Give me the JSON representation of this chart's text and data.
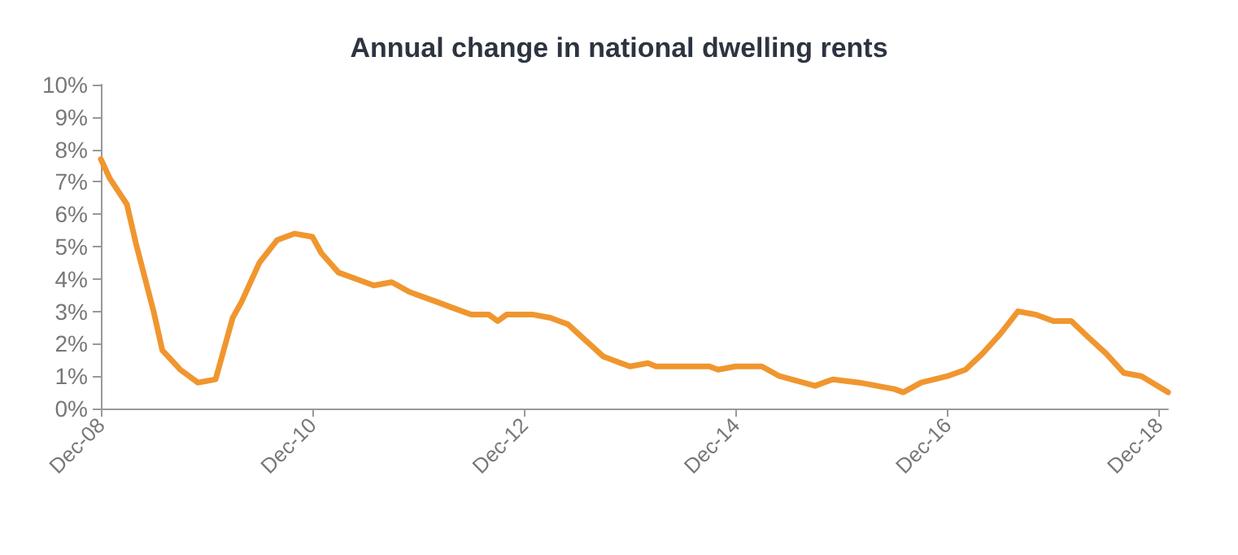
{
  "chart_data": {
    "type": "line",
    "title": "Annual change in national dwelling rents",
    "x": [
      "2008-12",
      "2009-01",
      "2009-03",
      "2009-04",
      "2009-06",
      "2009-07",
      "2009-09",
      "2009-11",
      "2010-01",
      "2010-02",
      "2010-03",
      "2010-04",
      "2010-06",
      "2010-08",
      "2010-10",
      "2010-12",
      "2011-01",
      "2011-03",
      "2011-05",
      "2011-07",
      "2011-09",
      "2011-11",
      "2012-02",
      "2012-04",
      "2012-06",
      "2012-08",
      "2012-09",
      "2012-10",
      "2013-01",
      "2013-03",
      "2013-05",
      "2013-07",
      "2013-09",
      "2013-10",
      "2013-12",
      "2014-02",
      "2014-03",
      "2014-07",
      "2014-09",
      "2014-10",
      "2014-12",
      "2015-03",
      "2015-05",
      "2015-09",
      "2015-11",
      "2016-02",
      "2016-04",
      "2016-06",
      "2016-07",
      "2016-09",
      "2016-12",
      "2017-02",
      "2017-04",
      "2017-06",
      "2017-08",
      "2017-10",
      "2017-12",
      "2018-02",
      "2018-04",
      "2018-06",
      "2018-08",
      "2018-10",
      "2019-01"
    ],
    "series": [
      {
        "color": "#f0962f",
        "values": [
          7.7,
          7.1,
          6.3,
          5.1,
          3.0,
          1.8,
          1.2,
          0.8,
          0.9,
          1.9,
          2.8,
          3.3,
          4.5,
          5.2,
          5.4,
          5.3,
          4.8,
          4.2,
          4.0,
          3.8,
          3.9,
          3.6,
          3.3,
          3.1,
          2.9,
          2.9,
          2.7,
          2.9,
          2.9,
          2.8,
          2.6,
          2.1,
          1.6,
          1.5,
          1.3,
          1.4,
          1.3,
          1.3,
          1.3,
          1.2,
          1.3,
          1.3,
          1.0,
          0.7,
          0.9,
          0.8,
          0.7,
          0.6,
          0.5,
          0.8,
          1.0,
          1.2,
          1.7,
          2.3,
          3.0,
          2.9,
          2.7,
          2.7,
          2.2,
          1.7,
          1.1,
          1.0,
          0.5
        ]
      }
    ],
    "xlim": [
      "2008-12",
      "2019-01"
    ],
    "xticks": [
      {
        "value": "2008-12",
        "label": "Dec-08"
      },
      {
        "value": "2010-12",
        "label": "Dec-10"
      },
      {
        "value": "2012-12",
        "label": "Dec-12"
      },
      {
        "value": "2014-12",
        "label": "Dec-14"
      },
      {
        "value": "2016-12",
        "label": "Dec-16"
      },
      {
        "value": "2018-12",
        "label": "Dec-18"
      }
    ],
    "ylim": [
      0,
      10
    ],
    "yticks": [
      {
        "value": 0,
        "label": "0%"
      },
      {
        "value": 1,
        "label": "1%"
      },
      {
        "value": 2,
        "label": "2%"
      },
      {
        "value": 3,
        "label": "3%"
      },
      {
        "value": 4,
        "label": "4%"
      },
      {
        "value": 5,
        "label": "5%"
      },
      {
        "value": 6,
        "label": "6%"
      },
      {
        "value": 7,
        "label": "7%"
      },
      {
        "value": 8,
        "label": "8%"
      },
      {
        "value": 9,
        "label": "9%"
      },
      {
        "value": 10,
        "label": "10%"
      }
    ],
    "grid": false,
    "marker": "none",
    "line_style": "solid"
  }
}
